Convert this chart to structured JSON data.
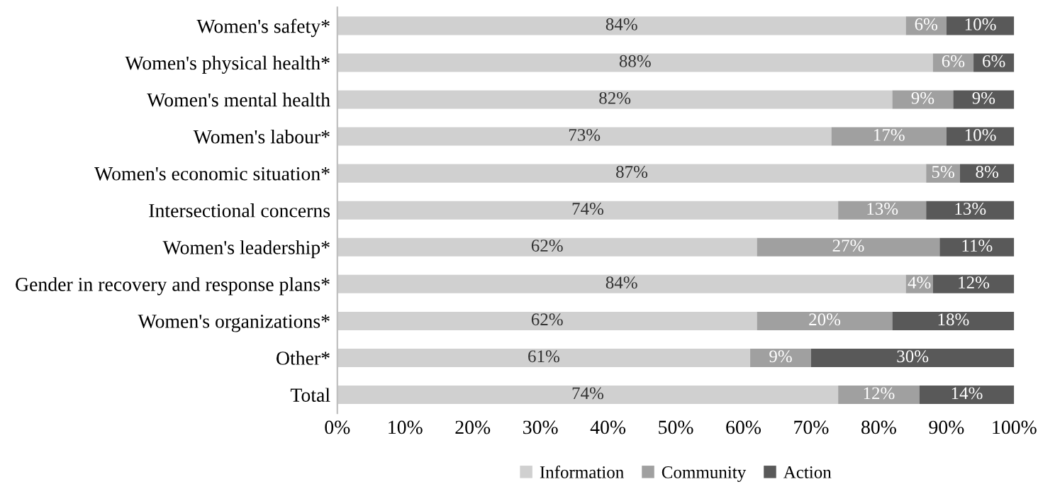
{
  "chart_data": {
    "type": "bar",
    "orientation": "horizontal",
    "stacked": true,
    "categories": [
      "Women's safety*",
      "Women's physical health*",
      "Women's mental health",
      "Women's labour*",
      "Women's economic situation*",
      "Intersectional concerns",
      "Women's leadership*",
      "Gender in recovery and response plans*",
      "Women's organizations*",
      "Other*",
      "Total"
    ],
    "series": [
      {
        "name": "Information",
        "color": "#d0d0d0",
        "values": [
          84,
          88,
          82,
          73,
          87,
          74,
          62,
          84,
          62,
          61,
          74
        ],
        "value_labels": [
          "84%",
          "88%",
          "82%",
          "73%",
          "87%",
          "74%",
          "62%",
          "84%",
          "62%",
          "61%",
          "74%"
        ]
      },
      {
        "name": "Community",
        "color": "#a0a0a0",
        "values": [
          6,
          6,
          9,
          17,
          5,
          13,
          27,
          4,
          20,
          9,
          12
        ],
        "value_labels": [
          "6%",
          "6%",
          "9%",
          "17%",
          "5%",
          "13%",
          "27%",
          "4%",
          "20%",
          "9%",
          "12%"
        ]
      },
      {
        "name": "Action",
        "color": "#595959",
        "values": [
          10,
          6,
          9,
          10,
          8,
          13,
          11,
          12,
          18,
          30,
          14
        ],
        "value_labels": [
          "10%",
          "6%",
          "9%",
          "10%",
          "8%",
          "13%",
          "11%",
          "12%",
          "18%",
          "30%",
          "14%"
        ]
      }
    ],
    "xlim": [
      0,
      100
    ],
    "xticks": [
      {
        "value": 0,
        "label": "0%"
      },
      {
        "value": 10,
        "label": "10%"
      },
      {
        "value": 20,
        "label": "20%"
      },
      {
        "value": 30,
        "label": "30%"
      },
      {
        "value": 40,
        "label": "40%"
      },
      {
        "value": 50,
        "label": "50%"
      },
      {
        "value": 60,
        "label": "60%"
      },
      {
        "value": 70,
        "label": "70%"
      },
      {
        "value": 80,
        "label": "80%"
      },
      {
        "value": 90,
        "label": "90%"
      },
      {
        "value": 100,
        "label": "100%"
      }
    ],
    "legend": "bottom",
    "grid": false
  }
}
